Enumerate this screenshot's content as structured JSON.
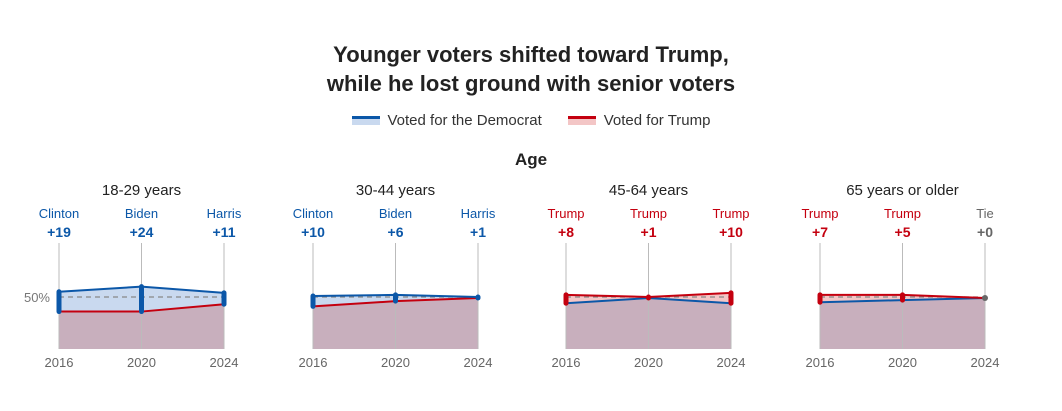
{
  "title": [
    "Younger voters shifted toward Trump,",
    "while he lost ground with senior voters"
  ],
  "legend": {
    "dem": "Voted for the Democrat",
    "rep": "Voted for Trump"
  },
  "section": "Age",
  "colors": {
    "dem": "#0b57a8",
    "rep": "#c4000f",
    "tie": "#666666",
    "demFill": "#c9d9ef",
    "repFill": "#f3c6c6",
    "base": "#c8afbd"
  },
  "chart_data": {
    "type": "line",
    "ylabel_tick": "50%",
    "ylim": [
      0,
      100
    ],
    "x": [
      "2016",
      "2020",
      "2024"
    ],
    "panels": [
      {
        "title": "18-29 years",
        "labels": [
          [
            "Clinton",
            "+19"
          ],
          [
            "Biden",
            "+24"
          ],
          [
            "Harris",
            "+11"
          ]
        ],
        "dem": [
          55,
          60,
          54
        ],
        "rep": [
          36,
          36,
          43
        ]
      },
      {
        "title": "30-44 years",
        "labels": [
          [
            "Clinton",
            "+10"
          ],
          [
            "Biden",
            "+6"
          ],
          [
            "Harris",
            "+1"
          ]
        ],
        "dem": [
          51,
          52,
          50
        ],
        "rep": [
          41,
          46,
          49
        ]
      },
      {
        "title": "45-64 years",
        "labels": [
          [
            "Trump",
            "+8"
          ],
          [
            "Trump",
            "+1"
          ],
          [
            "Trump",
            "+10"
          ]
        ],
        "dem": [
          44,
          49,
          44
        ],
        "rep": [
          52,
          50,
          54
        ]
      },
      {
        "title": "65 years or older",
        "labels": [
          [
            "Trump",
            "+7"
          ],
          [
            "Trump",
            "+5"
          ],
          [
            "Tie",
            "+0"
          ]
        ],
        "dem": [
          45,
          47,
          49
        ],
        "rep": [
          52,
          52,
          49
        ]
      }
    ]
  }
}
